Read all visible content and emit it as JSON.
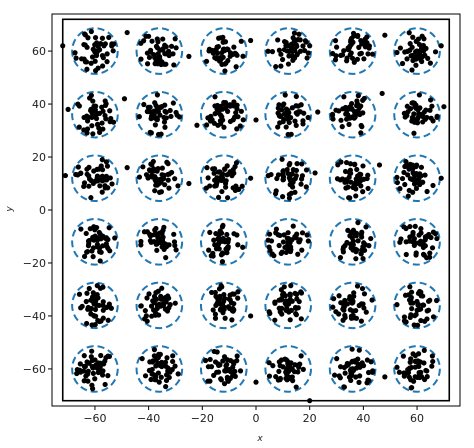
{
  "chart_data": {
    "type": "scatter",
    "title": "",
    "xlabel": "x",
    "ylabel": "y",
    "xlim": [
      -76,
      76
    ],
    "ylim": [
      -74,
      74
    ],
    "box": {
      "x": [
        -72,
        72
      ],
      "y": [
        -72,
        72
      ]
    },
    "xticks": [
      -60,
      -40,
      -20,
      0,
      20,
      40,
      60
    ],
    "yticks": [
      -60,
      -40,
      -20,
      0,
      20,
      40,
      60
    ],
    "grid": false,
    "circle_color": "#1f77b4",
    "point_color": "#000000",
    "circle_radius": 8.5,
    "grid_centers_x": [
      -60,
      -36,
      -12,
      12,
      36,
      60
    ],
    "grid_centers_y": [
      -60,
      -36,
      -12,
      12,
      36,
      60
    ],
    "points_per_cluster": 45,
    "point_spread": 6,
    "stray_points": [
      [
        -72,
        62
      ],
      [
        -48,
        67
      ],
      [
        -25,
        58
      ],
      [
        -2,
        64
      ],
      [
        20,
        62
      ],
      [
        48,
        66
      ],
      [
        69,
        62
      ],
      [
        -70,
        38
      ],
      [
        -49,
        42
      ],
      [
        -22,
        32
      ],
      [
        0,
        34
      ],
      [
        23,
        37
      ],
      [
        47,
        44
      ],
      [
        70,
        39
      ],
      [
        -71,
        13
      ],
      [
        -48,
        16
      ],
      [
        -25,
        10
      ],
      [
        -2,
        12
      ],
      [
        22,
        14
      ],
      [
        46,
        17
      ],
      [
        69,
        12
      ],
      [
        20,
        -72
      ],
      [
        0,
        -65
      ],
      [
        -2,
        -40
      ],
      [
        48,
        -63
      ]
    ]
  }
}
